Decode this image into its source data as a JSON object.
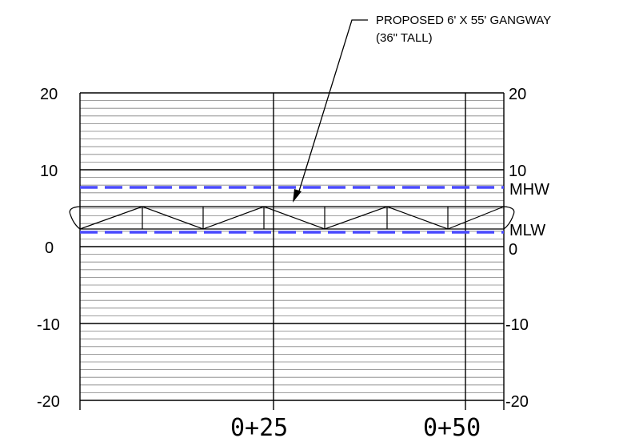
{
  "callout": {
    "line1": "PROPOSED 6' X 55' GANGWAY",
    "line2": "(36\" TALL)"
  },
  "left_axis": {
    "labels": [
      "20",
      "10",
      "0",
      "-10",
      "-20"
    ]
  },
  "right_axis": {
    "labels": [
      "20",
      "10",
      "0",
      "-10",
      "-20"
    ]
  },
  "water_levels": {
    "mhw": {
      "label": "MHW",
      "color": "#4a4aff"
    },
    "mlw": {
      "label": "MLW",
      "color": "#4a4aff"
    }
  },
  "stations": [
    "0+25",
    "0+50"
  ],
  "colors": {
    "grid_fine": "#808080",
    "grid_major": "#000000"
  }
}
